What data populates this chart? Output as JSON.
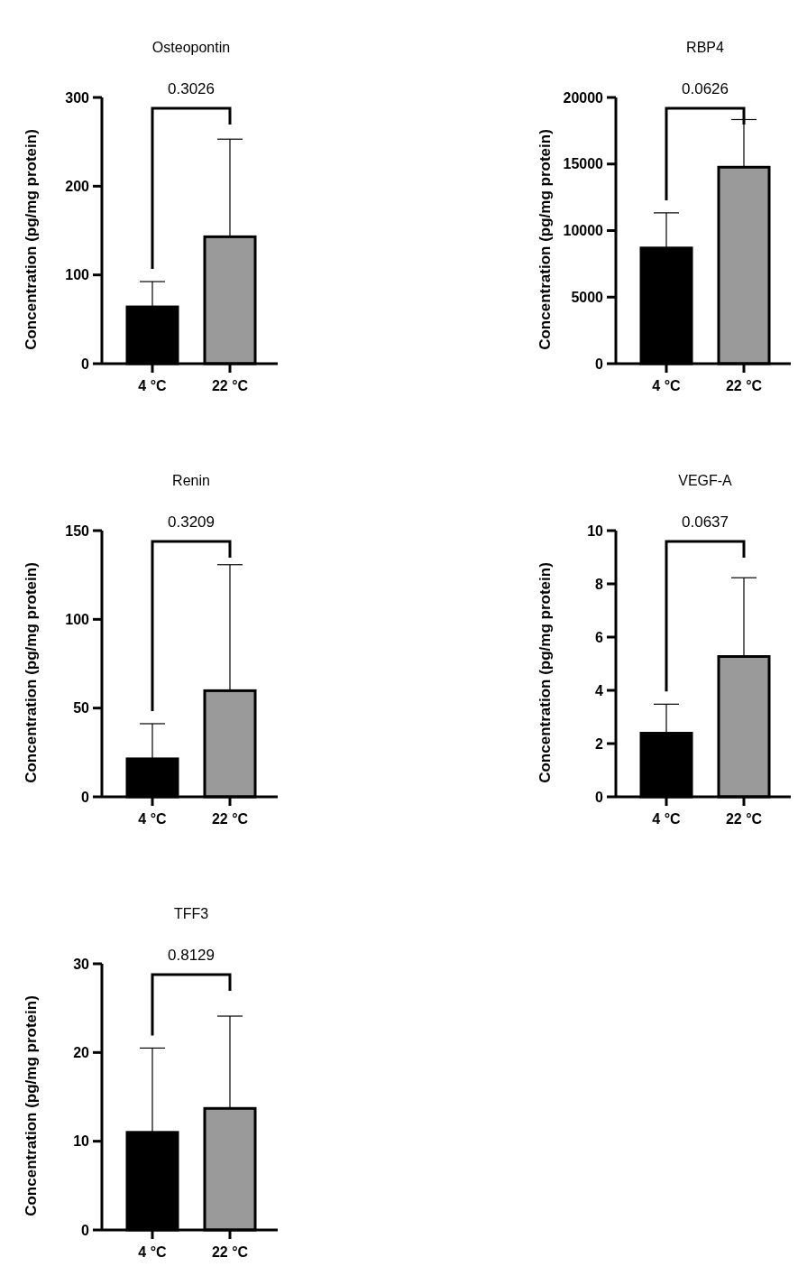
{
  "chart_data": [
    {
      "type": "bar",
      "title": "Osteopontin",
      "ylabel": "Concentration (pg/mg protein)",
      "categories": [
        "4 °C",
        "22 °C"
      ],
      "values": [
        64,
        143
      ],
      "colors": [
        "#000000",
        "#9a9a9a"
      ],
      "errors": [
        [
          64,
          92.5
        ],
        [
          143,
          253
        ]
      ],
      "ylim": [
        0,
        300
      ],
      "yticks": [
        0,
        100,
        200,
        300
      ],
      "annotations": [
        "0.3026"
      ]
    },
    {
      "type": "bar",
      "title": "RBP4",
      "ylabel": "Concentration (pg/mg protein)",
      "categories": [
        "4 °C",
        "22 °C"
      ],
      "values": [
        8690,
        14760
      ],
      "colors": [
        "#000000",
        "#9a9a9a"
      ],
      "errors": [
        [
          8690,
          11330
        ],
        [
          14760,
          18340
        ]
      ],
      "ylim": [
        0,
        20000
      ],
      "yticks": [
        0,
        5000,
        10000,
        15000,
        20000
      ],
      "annotations": [
        "0.0626"
      ]
    },
    {
      "type": "bar",
      "title": "Renin",
      "ylabel": "Concentration (pg/mg protein)",
      "categories": [
        "4 °C",
        "22 °C"
      ],
      "values": [
        21.4,
        59.8
      ],
      "colors": [
        "#000000",
        "#9a9a9a"
      ],
      "errors": [
        [
          21.4,
          41.2
        ],
        [
          59.8,
          130.8
        ]
      ],
      "ylim": [
        0,
        150
      ],
      "yticks": [
        0,
        50,
        100,
        150
      ],
      "annotations": [
        "0.3209"
      ]
    },
    {
      "type": "bar",
      "title": "VEGF-A",
      "ylabel": "Concentration (pg/mg protein)",
      "categories": [
        "4 °C",
        "22 °C"
      ],
      "values": [
        2.39,
        5.27
      ],
      "colors": [
        "#000000",
        "#9a9a9a"
      ],
      "errors": [
        [
          2.39,
          3.48
        ],
        [
          5.27,
          8.23
        ]
      ],
      "ylim": [
        0,
        10
      ],
      "yticks": [
        0,
        2,
        4,
        6,
        8,
        10
      ],
      "annotations": [
        "0.0637"
      ]
    },
    {
      "type": "bar",
      "title": "TFF3",
      "ylabel": "Concentration (pg/mg protein)",
      "categories": [
        "4 °C",
        "22 °C"
      ],
      "values": [
        11,
        13.7
      ],
      "colors": [
        "#000000",
        "#9a9a9a"
      ],
      "errors": [
        [
          11,
          20.5
        ],
        [
          13.7,
          24.1
        ]
      ],
      "ylim": [
        0,
        30
      ],
      "yticks": [
        0,
        10,
        20,
        30
      ],
      "annotations": [
        "0.8129"
      ]
    }
  ]
}
